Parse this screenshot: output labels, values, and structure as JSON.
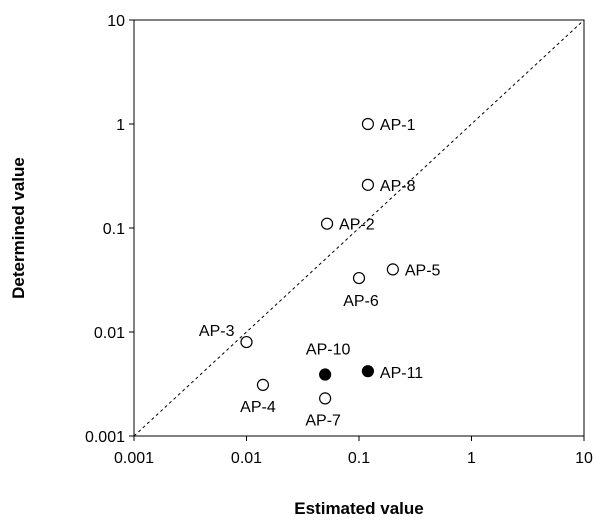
{
  "chart_data": {
    "type": "scatter",
    "title": "",
    "xlabel": "Estimated value",
    "ylabel": "Determined value",
    "xscale": "log",
    "yscale": "log",
    "xlim": [
      0.001,
      10
    ],
    "ylim": [
      0.001,
      10
    ],
    "xticks": [
      "0.001",
      "0.01",
      "0.1",
      "1",
      "10"
    ],
    "yticks": [
      "0.001",
      "0.01",
      "0.1",
      "1",
      "10"
    ],
    "grid": false,
    "reference_line": {
      "style": "dashed",
      "from": [
        0.001,
        0.001
      ],
      "to": [
        10,
        10
      ]
    },
    "points": [
      {
        "label": "AP-1",
        "x": 0.12,
        "y": 1.0,
        "filled": false
      },
      {
        "label": "AP-8",
        "x": 0.12,
        "y": 0.26,
        "filled": false
      },
      {
        "label": "AP-2",
        "x": 0.052,
        "y": 0.11,
        "filled": false
      },
      {
        "label": "AP-5",
        "x": 0.2,
        "y": 0.04,
        "filled": false
      },
      {
        "label": "AP-6",
        "x": 0.1,
        "y": 0.033,
        "filled": false
      },
      {
        "label": "AP-3",
        "x": 0.01,
        "y": 0.008,
        "filled": false
      },
      {
        "label": "AP-10",
        "x": 0.05,
        "y": 0.0039,
        "filled": true
      },
      {
        "label": "AP-11",
        "x": 0.12,
        "y": 0.0042,
        "filled": true
      },
      {
        "label": "AP-4",
        "x": 0.014,
        "y": 0.0031,
        "filled": false
      },
      {
        "label": "AP-7",
        "x": 0.05,
        "y": 0.0023,
        "filled": false
      }
    ],
    "marker_colors": {
      "filled": "#000000",
      "open": "#ffffff",
      "stroke": "#000000"
    }
  }
}
